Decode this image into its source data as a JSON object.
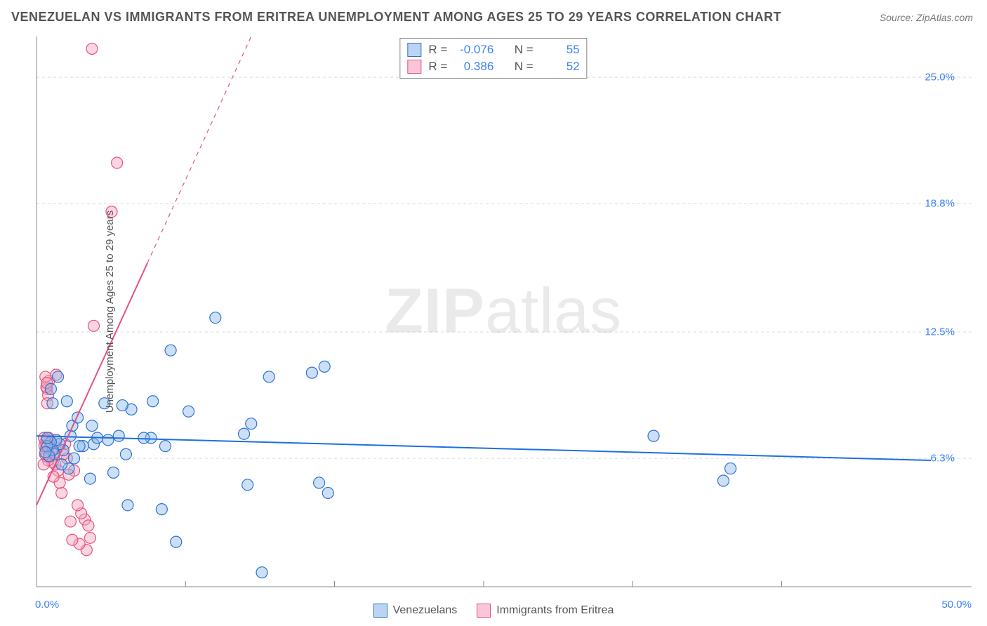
{
  "title": "VENEZUELAN VS IMMIGRANTS FROM ERITREA UNEMPLOYMENT AMONG AGES 25 TO 29 YEARS CORRELATION CHART",
  "source": "Source: ZipAtlas.com",
  "watermark_a": "ZIP",
  "watermark_b": "atlas",
  "y_axis_label": "Unemployment Among Ages 25 to 29 years",
  "chart": {
    "type": "scatter",
    "background": "#ffffff",
    "grid_color": "#d9d9d9",
    "axis_color": "#888888",
    "xlim": [
      0,
      50
    ],
    "ylim": [
      0,
      27
    ],
    "x_ticks": [
      0,
      50
    ],
    "x_tick_labels": [
      "0.0%",
      "50.0%"
    ],
    "y_ticks": [
      6.3,
      12.5,
      18.8,
      25.0
    ],
    "y_tick_labels": [
      "6.3%",
      "12.5%",
      "18.8%",
      "25.0%"
    ],
    "x_minor_ticks": [
      8.33,
      16.66,
      25,
      33.33,
      41.66
    ],
    "marker_radius": 8,
    "marker_stroke_width": 1.2,
    "series": [
      {
        "name": "Venezuelans",
        "color_fill": "#8fb9e8",
        "color_stroke": "#2e73d2",
        "fill_opacity": 0.45,
        "R": "-0.076",
        "N": "55",
        "trend": {
          "x1": 0,
          "y1": 7.4,
          "x2": 50,
          "y2": 6.2,
          "solid_cutoff_x": 50,
          "color": "#1f6fe0",
          "width": 2
        },
        "points": [
          [
            34.5,
            7.4
          ],
          [
            38.8,
            5.8
          ],
          [
            38.4,
            5.2
          ],
          [
            15.8,
            5.1
          ],
          [
            16.3,
            4.6
          ],
          [
            12.6,
            0.7
          ],
          [
            11.8,
            5.0
          ],
          [
            11.6,
            7.5
          ],
          [
            12.0,
            8.0
          ],
          [
            15.4,
            10.5
          ],
          [
            16.1,
            10.8
          ],
          [
            13.0,
            10.3
          ],
          [
            10.0,
            13.2
          ],
          [
            7.8,
            2.2
          ],
          [
            7.0,
            3.8
          ],
          [
            7.5,
            11.6
          ],
          [
            6.5,
            9.1
          ],
          [
            8.5,
            8.6
          ],
          [
            5.1,
            4.0
          ],
          [
            5.3,
            8.7
          ],
          [
            5.0,
            6.5
          ],
          [
            4.8,
            8.9
          ],
          [
            4.6,
            7.4
          ],
          [
            6.4,
            7.3
          ],
          [
            4.3,
            5.6
          ],
          [
            3.0,
            5.3
          ],
          [
            3.2,
            7.0
          ],
          [
            3.8,
            9.0
          ],
          [
            4.0,
            7.2
          ],
          [
            2.6,
            6.9
          ],
          [
            2.1,
            6.3
          ],
          [
            2.4,
            6.9
          ],
          [
            1.9,
            7.4
          ],
          [
            2.0,
            7.9
          ],
          [
            1.8,
            5.8
          ],
          [
            1.5,
            6.7
          ],
          [
            1.3,
            7.0
          ],
          [
            1.1,
            7.2
          ],
          [
            1.0,
            6.5
          ],
          [
            1.4,
            6.0
          ],
          [
            0.9,
            6.7
          ],
          [
            0.8,
            7.1
          ],
          [
            0.7,
            6.4
          ],
          [
            0.6,
            6.9
          ],
          [
            0.6,
            7.3
          ],
          [
            0.5,
            6.6
          ],
          [
            1.2,
            10.3
          ],
          [
            0.8,
            9.7
          ],
          [
            0.9,
            9.0
          ],
          [
            1.7,
            9.1
          ],
          [
            3.4,
            7.3
          ],
          [
            6.0,
            7.3
          ],
          [
            3.1,
            7.9
          ],
          [
            2.3,
            8.3
          ],
          [
            7.2,
            6.9
          ]
        ]
      },
      {
        "name": "Immigrants from Eritrea",
        "color_fill": "#f3a3bb",
        "color_stroke": "#e8517e",
        "fill_opacity": 0.45,
        "R": "0.386",
        "N": "52",
        "trend": {
          "x1": 0,
          "y1": 4.0,
          "x2": 12,
          "y2": 27,
          "solid_cutoff_x": 6.2,
          "color": "#e8517e",
          "width": 2
        },
        "points": [
          [
            3.1,
            26.4
          ],
          [
            4.5,
            20.8
          ],
          [
            4.2,
            18.4
          ],
          [
            3.2,
            12.8
          ],
          [
            3.0,
            2.4
          ],
          [
            2.8,
            1.8
          ],
          [
            2.7,
            3.3
          ],
          [
            2.5,
            3.6
          ],
          [
            2.3,
            4.0
          ],
          [
            2.9,
            3.0
          ],
          [
            2.4,
            2.1
          ],
          [
            2.1,
            5.7
          ],
          [
            2.0,
            2.3
          ],
          [
            1.9,
            3.2
          ],
          [
            1.8,
            5.5
          ],
          [
            1.7,
            6.3
          ],
          [
            1.6,
            7.0
          ],
          [
            1.5,
            6.5
          ],
          [
            1.4,
            4.6
          ],
          [
            1.3,
            5.1
          ],
          [
            1.2,
            5.7
          ],
          [
            1.15,
            6.8
          ],
          [
            1.1,
            7.2
          ],
          [
            1.05,
            6.0
          ],
          [
            1.0,
            6.6
          ],
          [
            0.95,
            5.4
          ],
          [
            0.9,
            6.1
          ],
          [
            0.85,
            6.7
          ],
          [
            0.8,
            7.1
          ],
          [
            0.78,
            7.0
          ],
          [
            0.75,
            6.4
          ],
          [
            0.7,
            6.9
          ],
          [
            0.68,
            7.3
          ],
          [
            0.65,
            6.2
          ],
          [
            0.62,
            6.7
          ],
          [
            0.6,
            7.0
          ],
          [
            0.58,
            7.2
          ],
          [
            0.55,
            6.4
          ],
          [
            0.52,
            6.8
          ],
          [
            0.5,
            7.1
          ],
          [
            0.48,
            6.5
          ],
          [
            0.45,
            6.9
          ],
          [
            0.42,
            7.3
          ],
          [
            0.4,
            6.0
          ],
          [
            0.6,
            9.7
          ],
          [
            0.7,
            10.1
          ],
          [
            0.65,
            9.4
          ],
          [
            0.55,
            9.8
          ],
          [
            0.6,
            9.0
          ],
          [
            0.5,
            10.3
          ],
          [
            0.58,
            10.0
          ],
          [
            1.1,
            10.4
          ]
        ]
      }
    ]
  },
  "legend": {
    "items": [
      {
        "label": "Venezuelans",
        "fill": "#bcd4f2",
        "stroke": "#2e73d2"
      },
      {
        "label": "Immigrants from Eritrea",
        "fill": "#f8c6d6",
        "stroke": "#e8517e"
      }
    ]
  },
  "stat_box": {
    "R_label": "R =",
    "N_label": "N ="
  }
}
